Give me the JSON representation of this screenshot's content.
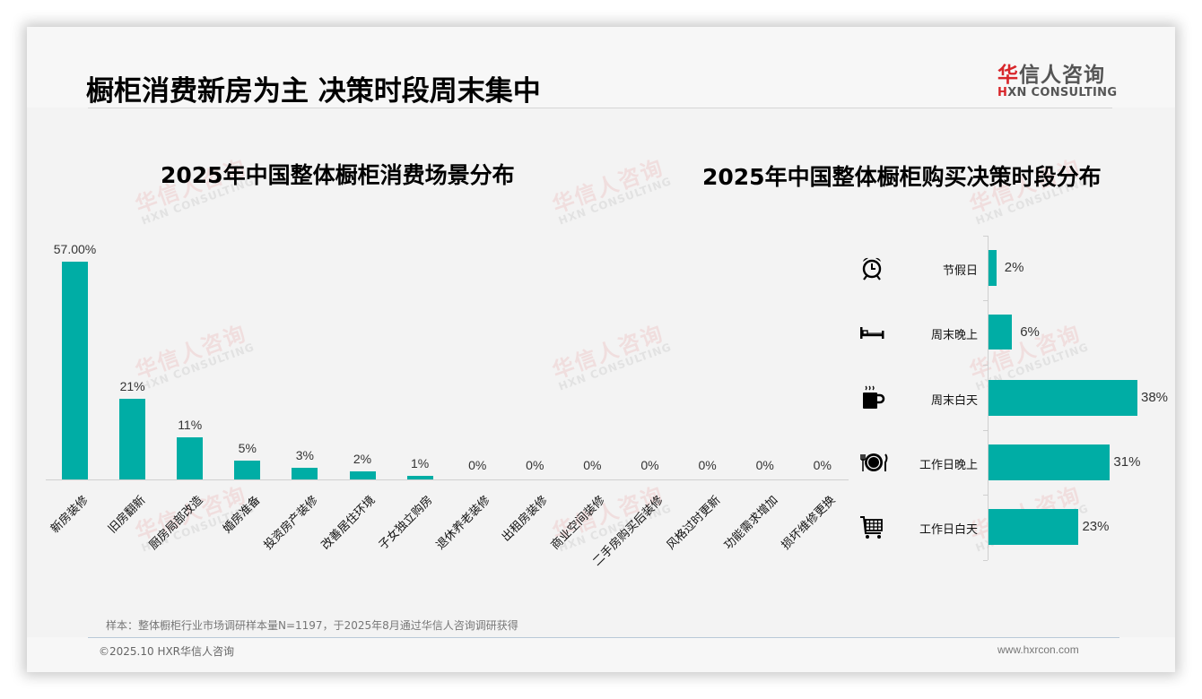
{
  "header": {
    "page_title": "橱柜消费新房为主 决策时段周末集中",
    "logo": {
      "cn_prefix": "华",
      "cn_rest": "信人咨询",
      "en_prefix": "H",
      "en_rest": "XN CONSULTING"
    }
  },
  "watermark": {
    "cn": "华信人咨询",
    "en": "HXN CONSULTING"
  },
  "colors": {
    "bar": "#00ada5",
    "brand_red": "#d8262b",
    "background": "#f3f3f3"
  },
  "chart_data": [
    {
      "type": "bar",
      "title": "2025年中国整体橱柜消费场景分布",
      "categories": [
        "新房装修",
        "旧房翻新",
        "厨房局部改造",
        "婚房准备",
        "投资房产装修",
        "改善居住环境",
        "子女独立购房",
        "退休养老装修",
        "出租房装修",
        "商业空间装修",
        "二手房购买后装修",
        "风格过时更新",
        "功能需求增加",
        "损坏维修更换"
      ],
      "values": [
        57,
        21,
        11,
        5,
        3,
        2,
        1,
        0,
        0,
        0,
        0,
        0,
        0,
        0
      ],
      "value_labels": [
        "57.00%",
        "21%",
        "11%",
        "5%",
        "3%",
        "2%",
        "1%",
        "0%",
        "0%",
        "0%",
        "0%",
        "0%",
        "0%",
        "0%"
      ],
      "xlabel": "",
      "ylabel": "",
      "ylim": [
        0,
        57
      ],
      "grid": false,
      "legend": "none",
      "unit": "%"
    },
    {
      "type": "bar",
      "orientation": "horizontal",
      "title": "2025年中国整体橱柜购买决策时段分布",
      "categories": [
        "节假日",
        "周末晚上",
        "周末白天",
        "工作日晚上",
        "工作日白天"
      ],
      "values": [
        2,
        6,
        38,
        31,
        23
      ],
      "value_labels": [
        "2%",
        "6%",
        "38%",
        "31%",
        "23%"
      ],
      "icons": [
        "alarm-clock-icon",
        "bed-icon",
        "coffee-mug-icon",
        "plate-cutlery-icon",
        "shopping-cart-icon"
      ],
      "xlabel": "",
      "ylabel": "",
      "xlim": [
        0,
        38
      ],
      "grid": false,
      "legend": "none",
      "unit": "%"
    }
  ],
  "footer": {
    "note": "样本：整体橱柜行业市场调研样本量N=1197，于2025年8月通过华信人咨询调研获得",
    "copyright": "©2025.10 HXR华信人咨询",
    "website": "www.hxrcon.com"
  }
}
